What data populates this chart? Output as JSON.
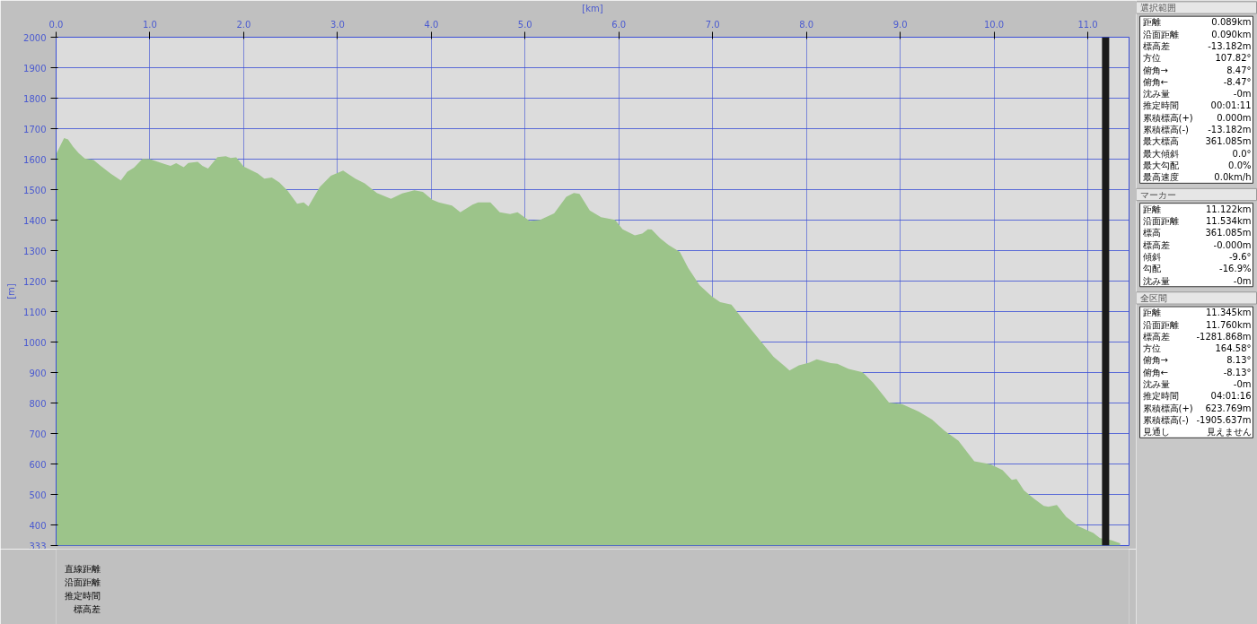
{
  "chart_data": [
    {
      "type": "area",
      "xlabel": "[km]",
      "ylabel": "[m]",
      "xlim": [
        0,
        11.44
      ],
      "ylim": [
        333,
        2000
      ],
      "xticks": [
        {
          "value": 0,
          "label": "0.0"
        },
        {
          "value": 1,
          "label": "1.0"
        },
        {
          "value": 2,
          "label": "2.0"
        },
        {
          "value": 3,
          "label": "3.0"
        },
        {
          "value": 4,
          "label": "4.0"
        },
        {
          "value": 5,
          "label": "5.0"
        },
        {
          "value": 6,
          "label": "6.0"
        },
        {
          "value": 7,
          "label": "7.0"
        },
        {
          "value": 8,
          "label": "8.0"
        },
        {
          "value": 9,
          "label": "9.0"
        },
        {
          "value": 10,
          "label": "10.0"
        },
        {
          "value": 11,
          "label": "11.0"
        }
      ],
      "yticks": [
        333,
        400,
        500,
        600,
        700,
        800,
        900,
        1000,
        1100,
        1200,
        1300,
        1400,
        1500,
        1600,
        1700,
        1800,
        1900,
        2000
      ],
      "grid": true,
      "color": "#9cc48a",
      "x": [
        0,
        0.085,
        0.127,
        0.18,
        0.24,
        0.305,
        0.4,
        0.475,
        0.58,
        0.69,
        0.76,
        0.83,
        0.92,
        1.0,
        1.15,
        1.22,
        1.28,
        1.36,
        1.41,
        1.51,
        1.56,
        1.62,
        1.72,
        1.81,
        1.86,
        1.92,
        2.0,
        2.15,
        2.22,
        2.3,
        2.38,
        2.47,
        2.57,
        2.64,
        2.69,
        2.81,
        2.93,
        3.06,
        3.19,
        3.29,
        3.42,
        3.57,
        3.69,
        3.82,
        3.91,
        4.01,
        4.08,
        4.22,
        4.31,
        4.44,
        4.5,
        4.63,
        4.73,
        4.84,
        4.92,
        5.05,
        5.16,
        5.31,
        5.44,
        5.52,
        5.58,
        5.69,
        5.81,
        5.96,
        6.04,
        6.17,
        6.25,
        6.31,
        6.35,
        6.44,
        6.53,
        6.65,
        6.74,
        6.86,
        6.99,
        7.08,
        7.2,
        7.35,
        7.5,
        7.65,
        7.78,
        7.82,
        7.92,
        8.03,
        8.11,
        8.26,
        8.33,
        8.45,
        8.6,
        8.71,
        8.88,
        9.02,
        9.2,
        9.34,
        9.47,
        9.62,
        9.79,
        9.96,
        10.09,
        10.19,
        10.24,
        10.32,
        10.43,
        10.53,
        10.58,
        10.67,
        10.77,
        10.9,
        11.06,
        11.13,
        11.25,
        11.345
      ],
      "values": [
        1616,
        1669,
        1665,
        1641,
        1620,
        1602,
        1597,
        1578,
        1553,
        1530,
        1559,
        1572,
        1601,
        1600,
        1585,
        1578,
        1587,
        1574,
        1588,
        1591,
        1578,
        1569,
        1607,
        1610,
        1604,
        1606,
        1576,
        1553,
        1536,
        1540,
        1524,
        1496,
        1454,
        1458,
        1445,
        1508,
        1546,
        1563,
        1536,
        1521,
        1489,
        1470,
        1488,
        1498,
        1493,
        1467,
        1458,
        1448,
        1426,
        1451,
        1458,
        1458,
        1426,
        1420,
        1426,
        1397,
        1401,
        1422,
        1477,
        1489,
        1486,
        1432,
        1410,
        1401,
        1370,
        1350,
        1356,
        1370,
        1369,
        1341,
        1319,
        1296,
        1243,
        1187,
        1150,
        1131,
        1123,
        1064,
        1008,
        952,
        918,
        907,
        924,
        933,
        944,
        931,
        929,
        912,
        901,
        867,
        802,
        797,
        772,
        746,
        710,
        677,
        609,
        600,
        581,
        548,
        551,
        514,
        486,
        463,
        460,
        466,
        427,
        396,
        374,
        357,
        351,
        340
      ],
      "ref_lines": [
        {
          "axis": "x",
          "value": 11.19,
          "label": null,
          "color": "#1a1a1a"
        }
      ]
    },
    {
      "type": "other",
      "title": "選択範囲",
      "annotations": [
        "距離",
        "0.089km",
        "沿面距離",
        "0.090km",
        "標高差",
        "-13.182m",
        "方位",
        "107.82°",
        "俯角→",
        "8.47°",
        "俯角←",
        "-8.47°",
        "沈み量",
        "-0m",
        "推定時間",
        "00:01:11",
        "累積標高(+)",
        "0.000m",
        "累積標高(-)",
        "-13.182m",
        "最大標高",
        "361.085m",
        "最大傾斜",
        "0.0°",
        "最大勾配",
        "0.0%",
        "最高速度",
        "0.0km/h"
      ]
    },
    {
      "type": "other",
      "title": "マーカー",
      "annotations": [
        "距離",
        "11.122km",
        "沿面距離",
        "11.534km",
        "標高",
        "361.085m",
        "標高差",
        "-0.000m",
        "傾斜",
        "-9.6°",
        "勾配",
        "-16.9%",
        "沈み量",
        "-0m"
      ]
    },
    {
      "type": "other",
      "title": "全区間",
      "annotations": [
        "距離",
        "11.345km",
        "沿面距離",
        "11.760km",
        "標高差",
        "-1281.868m",
        "方位",
        "164.58°",
        "俯角→",
        "8.13°",
        "俯角←",
        "-8.13°",
        "沈み量",
        "-0m",
        "推定時間",
        "04:01:16",
        "累積標高(+)",
        "623.769m",
        "累積標高(-)",
        "-1905.637m",
        "見通し",
        "見えません"
      ]
    },
    {
      "type": "other",
      "annotations": [
        "直線距離",
        "沿面距離",
        "推定時間",
        "標高差"
      ]
    }
  ]
}
